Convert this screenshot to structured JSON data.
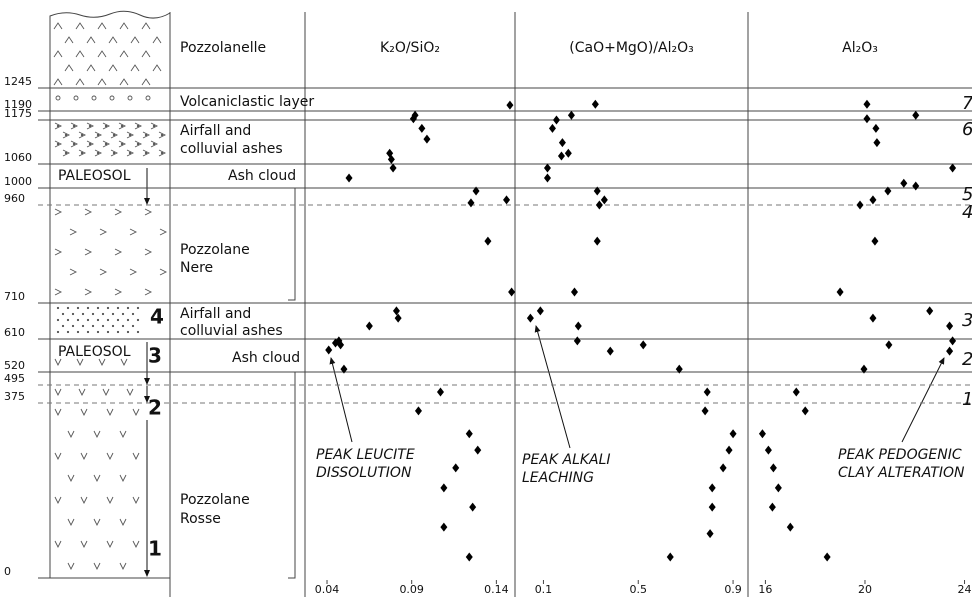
{
  "depth_axis": {
    "ylim": [
      0,
      1425
    ],
    "yticks": [
      0,
      375,
      495,
      520,
      610,
      710,
      960,
      1000,
      1060,
      1175,
      1190,
      1245
    ]
  },
  "chart_data": [
    {
      "type": "scatter",
      "title": "K₂O/SiO₂",
      "xlim": [
        0.027,
        0.151
      ],
      "xticks": [
        0.04,
        0.09,
        0.14
      ],
      "color": "#000000",
      "x": [
        0.148,
        0.092,
        0.091,
        0.096,
        0.099,
        0.077,
        0.078,
        0.079,
        0.053,
        0.128,
        0.125,
        0.146,
        0.135,
        0.149,
        0.081,
        0.082,
        0.065,
        0.047,
        0.045,
        0.048,
        0.041,
        0.05,
        0.107,
        0.094,
        0.124,
        0.129,
        0.116,
        0.109,
        0.126,
        0.109,
        0.124
      ],
      "y": [
        1204,
        1183,
        1177,
        1153,
        1125,
        1088,
        1072,
        1050,
        1025,
        993,
        965,
        972,
        868,
        738,
        688,
        668,
        646,
        605,
        599,
        594,
        580,
        528,
        448,
        358,
        309,
        274,
        236,
        193,
        152,
        109,
        45
      ]
    },
    {
      "type": "scatter",
      "title": "(CaO+MgO)/Al₂O₃",
      "xlim": [
        -0.02,
        0.963
      ],
      "xticks": [
        0.1,
        0.5,
        0.9
      ],
      "color": "#000000",
      "x": [
        0.319,
        0.218,
        0.155,
        0.138,
        0.18,
        0.205,
        0.176,
        0.117,
        0.117,
        0.327,
        0.357,
        0.336,
        0.327,
        0.231,
        0.087,
        0.045,
        0.247,
        0.243,
        0.382,
        0.521,
        0.673,
        0.791,
        0.782,
        0.9,
        0.883,
        0.858,
        0.812,
        0.812,
        0.803,
        0.635
      ],
      "y": [
        1206,
        1183,
        1175,
        1153,
        1116,
        1088,
        1081,
        1050,
        1025,
        993,
        972,
        960,
        868,
        738,
        688,
        668,
        646,
        605,
        577,
        594,
        528,
        448,
        358,
        309,
        274,
        236,
        193,
        152,
        95,
        45
      ]
    },
    {
      "type": "scatter",
      "title": "Al₂O₃",
      "xlim": [
        15.3,
        24.3
      ],
      "xticks": [
        16,
        20,
        24
      ],
      "color": "#000000",
      "x": [
        20.08,
        22.04,
        20.08,
        20.44,
        20.48,
        21.56,
        22.04,
        23.52,
        20.92,
        20.32,
        19.8,
        20.4,
        19.0,
        22.6,
        20.32,
        23.4,
        23.52,
        20.96,
        23.4,
        19.96,
        17.24,
        17.6,
        15.88,
        16.12,
        16.32,
        16.52,
        16.28,
        17.0,
        18.48
      ],
      "y": [
        1206,
        1183,
        1177,
        1153,
        1116,
        1012,
        1005,
        1050,
        993,
        972,
        960,
        868,
        738,
        688,
        668,
        646,
        605,
        594,
        577,
        528,
        448,
        358,
        309,
        274,
        236,
        193,
        152,
        109,
        45
      ]
    }
  ],
  "units": [
    [
      "Pozzolanelle"
    ],
    [
      "Volcaniclastic layer"
    ],
    [
      "Airfall and",
      "colluvial ashes"
    ],
    [
      "PALEOSOL"
    ],
    [
      "Ash cloud"
    ],
    [
      "Pozzolane",
      "Nere"
    ],
    [
      "Airfall and",
      "colluvial ashes"
    ],
    [
      "PALEOSOL"
    ],
    [
      "Ash cloud"
    ],
    [
      "Pozzolane",
      "Rosse"
    ]
  ],
  "column_units": [
    "4",
    "3",
    "2",
    "1"
  ],
  "phases": [
    "7",
    "6",
    "5",
    "4",
    "3",
    "2",
    "1"
  ],
  "annotations": [
    [
      "PEAK LEUCITE",
      "DISSOLUTION"
    ],
    [
      "PEAK ALKALI",
      "LEACHING"
    ],
    [
      "PEAK PEDOGENIC",
      "CLAY ALTERATION"
    ]
  ]
}
